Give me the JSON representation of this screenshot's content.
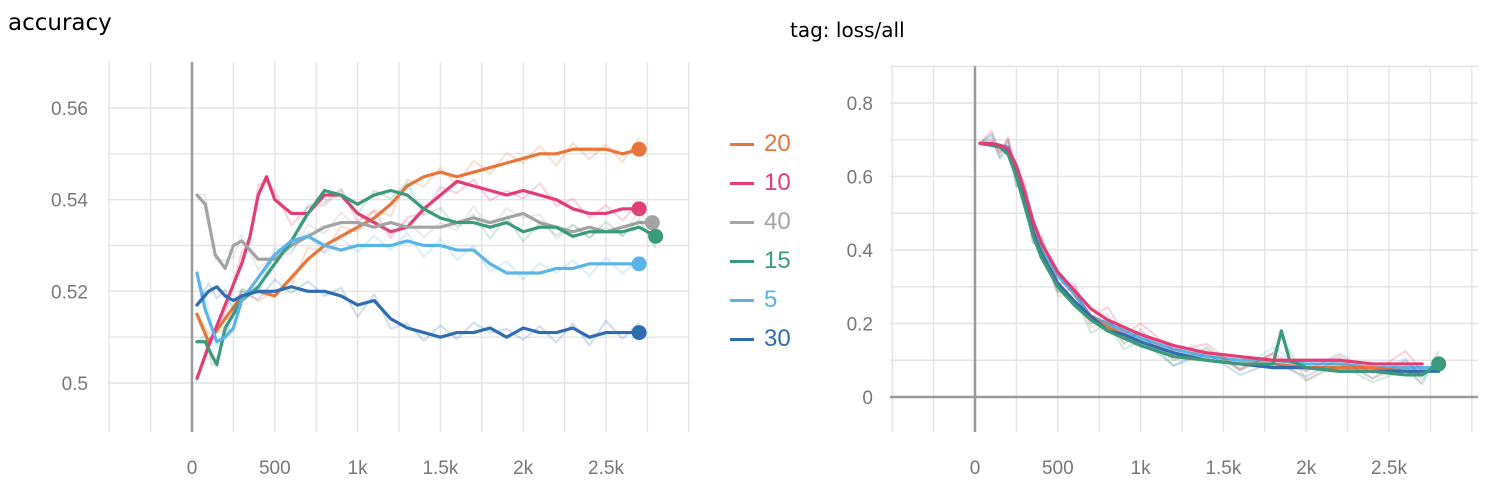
{
  "chart_data": [
    {
      "type": "line",
      "title": "accuracy",
      "xlabel": "",
      "ylabel": "",
      "xlim": [
        -500,
        3000
      ],
      "ylim": [
        0.495,
        0.568
      ],
      "x_ticks": [
        {
          "v": 0,
          "label": "0"
        },
        {
          "v": 500,
          "label": "500"
        },
        {
          "v": 1000,
          "label": "1k"
        },
        {
          "v": 1500,
          "label": "1.5k"
        },
        {
          "v": 2000,
          "label": "2k"
        },
        {
          "v": 2500,
          "label": "2.5k"
        }
      ],
      "y_ticks": [
        {
          "v": 0.5,
          "label": "0.5"
        },
        {
          "v": 0.52,
          "label": "0.52"
        },
        {
          "v": 0.54,
          "label": "0.54"
        },
        {
          "v": 0.56,
          "label": "0.56"
        }
      ],
      "grid": true,
      "legend_position": "right",
      "series": [
        {
          "name": "20",
          "color": "#e8763a",
          "x": [
            30,
            100,
            200,
            300,
            400,
            500,
            600,
            700,
            800,
            900,
            1000,
            1100,
            1200,
            1300,
            1400,
            1500,
            1600,
            1700,
            1800,
            1900,
            2000,
            2100,
            2200,
            2300,
            2400,
            2500,
            2600,
            2700
          ],
          "y": [
            0.515,
            0.509,
            0.514,
            0.519,
            0.52,
            0.519,
            0.523,
            0.527,
            0.53,
            0.532,
            0.534,
            0.536,
            0.539,
            0.543,
            0.545,
            0.546,
            0.545,
            0.546,
            0.547,
            0.548,
            0.549,
            0.55,
            0.55,
            0.551,
            0.551,
            0.551,
            0.55,
            0.551
          ]
        },
        {
          "name": "10",
          "color": "#e23d75",
          "x": [
            30,
            100,
            200,
            300,
            350,
            400,
            450,
            500,
            600,
            700,
            800,
            900,
            1000,
            1100,
            1200,
            1300,
            1400,
            1500,
            1600,
            1700,
            1800,
            1900,
            2000,
            2100,
            2200,
            2300,
            2400,
            2500,
            2600,
            2700
          ],
          "y": [
            0.501,
            0.508,
            0.517,
            0.526,
            0.532,
            0.541,
            0.545,
            0.54,
            0.537,
            0.537,
            0.541,
            0.541,
            0.537,
            0.535,
            0.533,
            0.534,
            0.538,
            0.541,
            0.544,
            0.543,
            0.542,
            0.541,
            0.542,
            0.541,
            0.54,
            0.538,
            0.537,
            0.537,
            0.538,
            0.538
          ]
        },
        {
          "name": "40",
          "color": "#a3a3a3",
          "x": [
            30,
            80,
            140,
            200,
            250,
            300,
            400,
            500,
            600,
            700,
            800,
            900,
            1000,
            1100,
            1200,
            1300,
            1400,
            1500,
            1600,
            1700,
            1800,
            1900,
            2000,
            2100,
            2200,
            2300,
            2400,
            2500,
            2600,
            2700,
            2780
          ],
          "y": [
            0.541,
            0.539,
            0.528,
            0.525,
            0.53,
            0.531,
            0.527,
            0.527,
            0.53,
            0.532,
            0.534,
            0.535,
            0.535,
            0.534,
            0.535,
            0.534,
            0.534,
            0.534,
            0.535,
            0.536,
            0.535,
            0.536,
            0.537,
            0.535,
            0.534,
            0.533,
            0.534,
            0.533,
            0.534,
            0.535,
            0.535
          ]
        },
        {
          "name": "15",
          "color": "#3b9a7c",
          "x": [
            30,
            80,
            120,
            150,
            200,
            300,
            400,
            500,
            600,
            700,
            800,
            900,
            1000,
            1100,
            1200,
            1300,
            1400,
            1500,
            1600,
            1700,
            1800,
            1900,
            2000,
            2100,
            2200,
            2300,
            2400,
            2500,
            2600,
            2700,
            2800
          ],
          "y": [
            0.509,
            0.509,
            0.506,
            0.504,
            0.512,
            0.518,
            0.521,
            0.526,
            0.531,
            0.537,
            0.542,
            0.541,
            0.539,
            0.541,
            0.542,
            0.541,
            0.538,
            0.536,
            0.535,
            0.535,
            0.534,
            0.535,
            0.533,
            0.534,
            0.534,
            0.532,
            0.533,
            0.533,
            0.533,
            0.534,
            0.532
          ]
        },
        {
          "name": "5",
          "color": "#5ab4e8",
          "x": [
            30,
            80,
            150,
            200,
            250,
            300,
            400,
            500,
            600,
            700,
            800,
            900,
            1000,
            1100,
            1200,
            1300,
            1400,
            1500,
            1600,
            1700,
            1800,
            1900,
            2000,
            2100,
            2200,
            2300,
            2400,
            2500,
            2600,
            2700
          ],
          "y": [
            0.524,
            0.516,
            0.509,
            0.51,
            0.512,
            0.518,
            0.523,
            0.528,
            0.531,
            0.532,
            0.53,
            0.529,
            0.53,
            0.53,
            0.53,
            0.531,
            0.53,
            0.53,
            0.529,
            0.529,
            0.526,
            0.524,
            0.524,
            0.524,
            0.525,
            0.525,
            0.526,
            0.526,
            0.526,
            0.526
          ]
        },
        {
          "name": "30",
          "color": "#2f6db0",
          "x": [
            30,
            100,
            150,
            200,
            250,
            300,
            400,
            500,
            600,
            700,
            800,
            900,
            1000,
            1100,
            1200,
            1300,
            1400,
            1500,
            1600,
            1700,
            1800,
            1900,
            2000,
            2100,
            2200,
            2300,
            2400,
            2500,
            2600,
            2700
          ],
          "y": [
            0.517,
            0.52,
            0.521,
            0.519,
            0.518,
            0.519,
            0.52,
            0.52,
            0.521,
            0.52,
            0.52,
            0.519,
            0.517,
            0.518,
            0.514,
            0.512,
            0.511,
            0.51,
            0.511,
            0.511,
            0.512,
            0.51,
            0.512,
            0.511,
            0.511,
            0.512,
            0.51,
            0.511,
            0.511,
            0.511
          ]
        }
      ]
    },
    {
      "type": "line",
      "title": "tag: loss/all",
      "xlabel": "",
      "ylabel": "",
      "xlim": [
        -500,
        3000
      ],
      "ylim": [
        -0.1,
        0.9
      ],
      "x_ticks": [
        {
          "v": 0,
          "label": "0"
        },
        {
          "v": 500,
          "label": "500"
        },
        {
          "v": 1000,
          "label": "1k"
        },
        {
          "v": 1500,
          "label": "1.5k"
        },
        {
          "v": 2000,
          "label": "2k"
        },
        {
          "v": 2500,
          "label": "2.5k"
        }
      ],
      "y_ticks": [
        {
          "v": 0,
          "label": "0"
        },
        {
          "v": 0.2,
          "label": "0.2"
        },
        {
          "v": 0.4,
          "label": "0.4"
        },
        {
          "v": 0.6,
          "label": "0.6"
        },
        {
          "v": 0.8,
          "label": "0.8"
        }
      ],
      "grid": true,
      "series": [
        {
          "color": "#5ab4e8",
          "x": [
            30,
            100,
            150,
            200,
            250,
            300,
            350,
            400,
            500,
            600,
            700,
            800,
            900,
            1000,
            1200,
            1400,
            1600,
            1800,
            2000,
            2200,
            2400,
            2600,
            2700,
            2800
          ],
          "y": [
            0.69,
            0.69,
            0.685,
            0.68,
            0.62,
            0.55,
            0.46,
            0.4,
            0.33,
            0.28,
            0.22,
            0.2,
            0.18,
            0.16,
            0.13,
            0.11,
            0.1,
            0.1,
            0.09,
            0.09,
            0.08,
            0.08,
            0.08,
            0.08
          ]
        },
        {
          "color": "#e8763a",
          "x": [
            30,
            100,
            150,
            200,
            250,
            300,
            350,
            400,
            500,
            600,
            700,
            800,
            900,
            1000,
            1200,
            1400,
            1600,
            1800,
            2000,
            2200,
            2400,
            2600,
            2700
          ],
          "y": [
            0.69,
            0.685,
            0.68,
            0.67,
            0.61,
            0.53,
            0.45,
            0.39,
            0.31,
            0.26,
            0.22,
            0.19,
            0.17,
            0.15,
            0.12,
            0.1,
            0.09,
            0.09,
            0.08,
            0.08,
            0.08,
            0.07,
            0.06
          ]
        },
        {
          "color": "#2f6db0",
          "x": [
            30,
            100,
            150,
            200,
            250,
            300,
            350,
            400,
            500,
            600,
            700,
            800,
            900,
            1000,
            1200,
            1400,
            1600,
            1800,
            2000,
            2200,
            2400,
            2600,
            2700,
            2800
          ],
          "y": [
            0.69,
            0.685,
            0.68,
            0.67,
            0.61,
            0.54,
            0.45,
            0.39,
            0.31,
            0.26,
            0.22,
            0.18,
            0.17,
            0.15,
            0.12,
            0.1,
            0.09,
            0.08,
            0.08,
            0.07,
            0.07,
            0.07,
            0.07,
            0.07
          ]
        },
        {
          "color": "#3b9a7c",
          "x": [
            30,
            100,
            150,
            200,
            250,
            300,
            350,
            400,
            500,
            600,
            700,
            800,
            900,
            1000,
            1200,
            1400,
            1600,
            1800,
            1850,
            1900,
            2000,
            2200,
            2400,
            2600,
            2700,
            2800
          ],
          "y": [
            0.69,
            0.685,
            0.68,
            0.66,
            0.6,
            0.52,
            0.44,
            0.38,
            0.3,
            0.25,
            0.21,
            0.18,
            0.16,
            0.14,
            0.11,
            0.1,
            0.09,
            0.09,
            0.18,
            0.1,
            0.08,
            0.07,
            0.07,
            0.06,
            0.06,
            0.09
          ]
        },
        {
          "color": "#e23d75",
          "x": [
            30,
            100,
            150,
            200,
            250,
            300,
            350,
            400,
            500,
            600,
            700,
            800,
            900,
            1000,
            1200,
            1400,
            1600,
            1800,
            2000,
            2200,
            2400,
            2600,
            2700
          ],
          "y": [
            0.69,
            0.69,
            0.685,
            0.675,
            0.63,
            0.56,
            0.48,
            0.42,
            0.34,
            0.29,
            0.24,
            0.21,
            0.19,
            0.17,
            0.14,
            0.12,
            0.11,
            0.1,
            0.1,
            0.1,
            0.09,
            0.09,
            0.09
          ]
        }
      ]
    }
  ]
}
